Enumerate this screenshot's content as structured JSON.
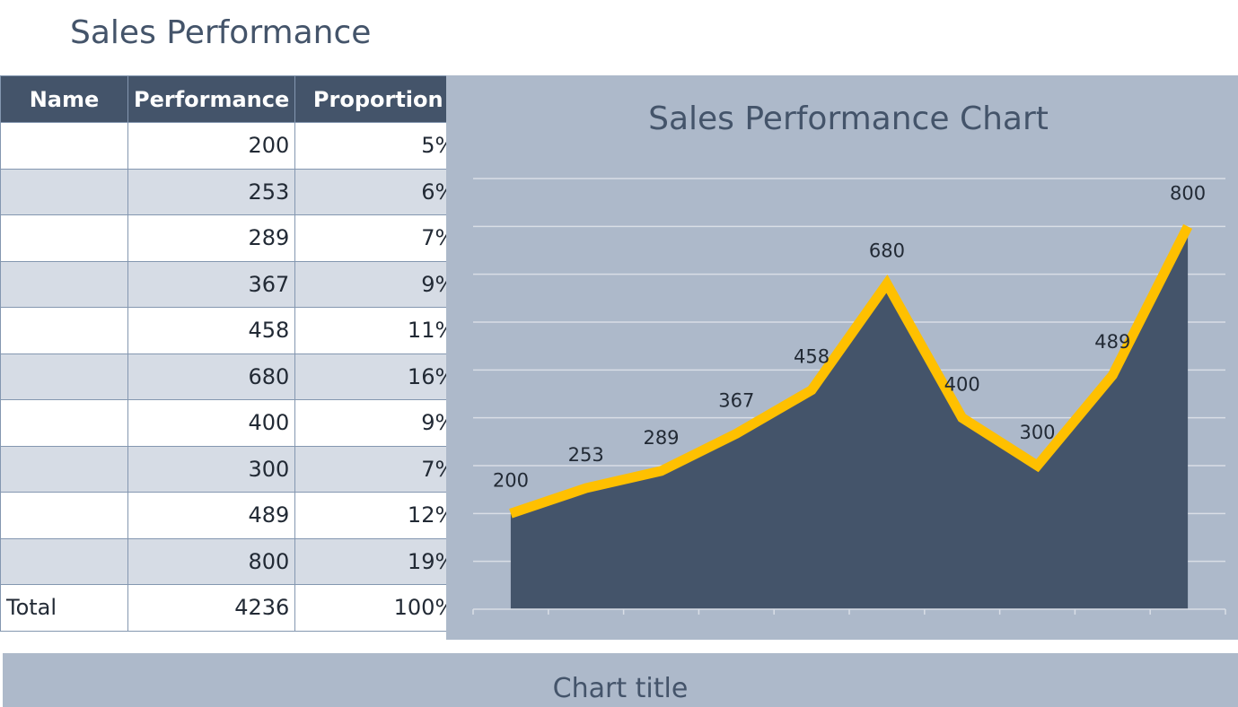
{
  "sheet": {
    "title": "Sales Performance"
  },
  "table": {
    "headers": [
      "Name",
      "Performance",
      "Proportion"
    ],
    "rows": [
      {
        "name": "",
        "performance": "200",
        "proportion": "5%"
      },
      {
        "name": "",
        "performance": "253",
        "proportion": "6%"
      },
      {
        "name": "",
        "performance": "289",
        "proportion": "7%"
      },
      {
        "name": "",
        "performance": "367",
        "proportion": "9%"
      },
      {
        "name": "",
        "performance": "458",
        "proportion": "11%"
      },
      {
        "name": "",
        "performance": "680",
        "proportion": "16%"
      },
      {
        "name": "",
        "performance": "400",
        "proportion": "9%"
      },
      {
        "name": "",
        "performance": "300",
        "proportion": "7%"
      },
      {
        "name": "",
        "performance": "489",
        "proportion": "12%"
      },
      {
        "name": "",
        "performance": "800",
        "proportion": "19%"
      }
    ],
    "total": {
      "name": "Total",
      "performance": "4236",
      "proportion": "100%"
    }
  },
  "chart_data": [
    {
      "type": "area",
      "title": "Sales Performance Chart",
      "categories": [
        "",
        "",
        "",
        "",
        "",
        "",
        "",
        "",
        "",
        ""
      ],
      "series": [
        {
          "type": "area",
          "values": [
            200,
            253,
            289,
            367,
            458,
            680,
            400,
            300,
            489,
            800
          ],
          "color": "#44546a"
        },
        {
          "type": "line",
          "values": [
            200,
            253,
            289,
            367,
            458,
            680,
            400,
            300,
            489,
            800
          ],
          "color": "#ffc000"
        }
      ],
      "data_labels": [
        "200",
        "253",
        "289",
        "367",
        "458",
        "680",
        "400",
        "300",
        "489",
        "800"
      ],
      "ylim": [
        0,
        900
      ],
      "grid": true,
      "y_axis_visible": false,
      "background": "#adb9ca"
    },
    {
      "type": "line",
      "title": "Chart title"
    }
  ]
}
